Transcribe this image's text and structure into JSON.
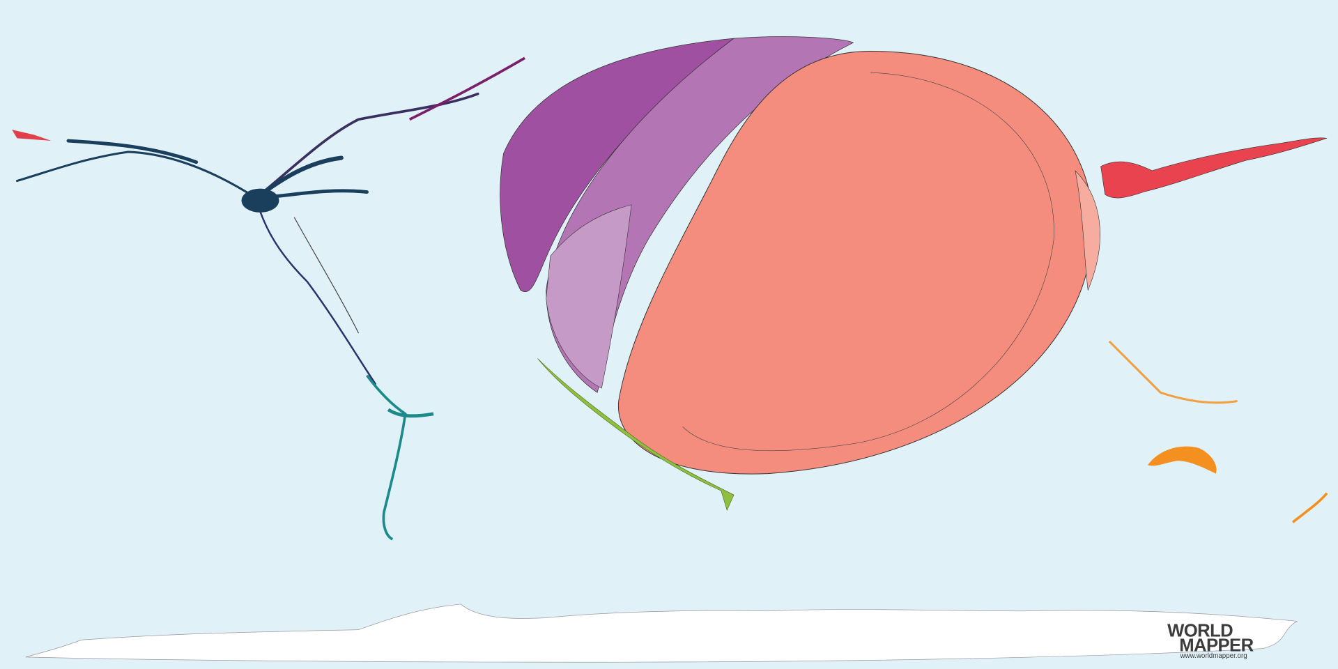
{
  "logo": {
    "line1": "WORLD",
    "line2": "MAPPER",
    "url": "www.worldmapper.org"
  }
}
